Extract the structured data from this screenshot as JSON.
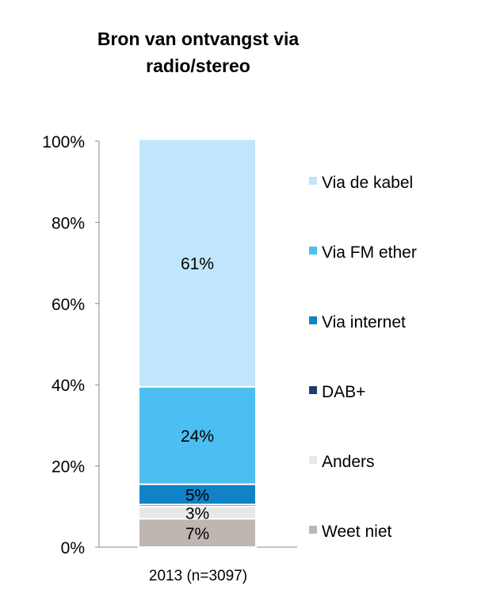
{
  "chart_data": {
    "type": "bar",
    "stacked": true,
    "title_lines": [
      "Bron van ontvangst via",
      "radio/stereo"
    ],
    "categories": [
      "2013 (n=3097)"
    ],
    "y_ticks": [
      "0%",
      "20%",
      "40%",
      "60%",
      "80%",
      "100%"
    ],
    "ylim": [
      0,
      100
    ],
    "grid": false,
    "legend_position": "right",
    "series": [
      {
        "name": "Weet niet",
        "values": [
          7
        ],
        "label": "7%",
        "color": "#bfb6b2"
      },
      {
        "name": "Anders",
        "values": [
          3
        ],
        "label": "3%",
        "color": "#e8e8e8"
      },
      {
        "name": "DAB+",
        "values": [
          0.5
        ],
        "label": "",
        "color": "#1b3f6e"
      },
      {
        "name": "Via internet",
        "values": [
          5
        ],
        "label": "5%",
        "color": "#1182c7"
      },
      {
        "name": "Via FM ether",
        "values": [
          24
        ],
        "label": "24%",
        "color": "#4dbef2"
      },
      {
        "name": "Via de kabel",
        "values": [
          61
        ],
        "label": "61%",
        "color": "#bfe6fa"
      }
    ],
    "legend_order": [
      "Via de kabel",
      "Via FM ether",
      "Via internet",
      "DAB+",
      "Anders",
      "Weet niet"
    ]
  }
}
